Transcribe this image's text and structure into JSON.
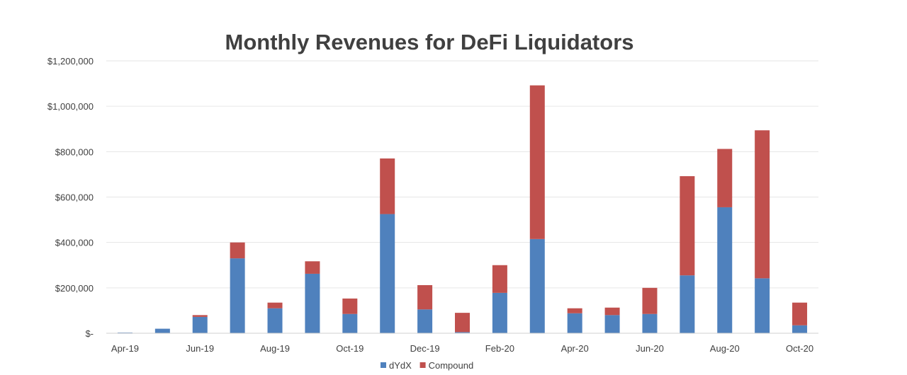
{
  "chart_data": {
    "type": "bar",
    "stacked": true,
    "title": "Monthly Revenues for DeFi Liquidators",
    "xlabel": "",
    "ylabel": "",
    "ylim": [
      0,
      1200000
    ],
    "y_ticks": [
      0,
      200000,
      400000,
      600000,
      800000,
      1000000,
      1200000
    ],
    "y_tick_labels": [
      "$-",
      "$200,000",
      "$400,000",
      "$600,000",
      "$800,000",
      "$1,000,000",
      "$1,200,000"
    ],
    "categories": [
      "Apr-19",
      "May-19",
      "Jun-19",
      "Jul-19",
      "Aug-19",
      "Sep-19",
      "Oct-19",
      "Nov-19",
      "Dec-19",
      "Jan-20",
      "Feb-20",
      "Mar-20",
      "Apr-20",
      "May-20",
      "Jun-20",
      "Jul-20",
      "Aug-20",
      "Sep-20",
      "Oct-20"
    ],
    "x_tick_labels": [
      "Apr-19",
      "",
      "Jun-19",
      "",
      "Aug-19",
      "",
      "Oct-19",
      "",
      "Dec-19",
      "",
      "Feb-20",
      "",
      "Apr-20",
      "",
      "Jun-20",
      "",
      "Aug-20",
      "",
      "Oct-20"
    ],
    "series": [
      {
        "name": "dYdX",
        "color": "#4f81bd",
        "values": [
          3000,
          20000,
          72000,
          330000,
          110000,
          262000,
          85000,
          525000,
          105000,
          5000,
          178000,
          415000,
          88000,
          80000,
          85000,
          255000,
          555000,
          242000,
          35000
        ]
      },
      {
        "name": "Compound",
        "color": "#c0504d",
        "values": [
          0,
          0,
          8000,
          70000,
          25000,
          55000,
          68000,
          245000,
          107000,
          85000,
          122000,
          677000,
          22000,
          33000,
          115000,
          437000,
          257000,
          652000,
          100000
        ]
      }
    ],
    "grid": true,
    "legend_position": "bottom-center"
  }
}
